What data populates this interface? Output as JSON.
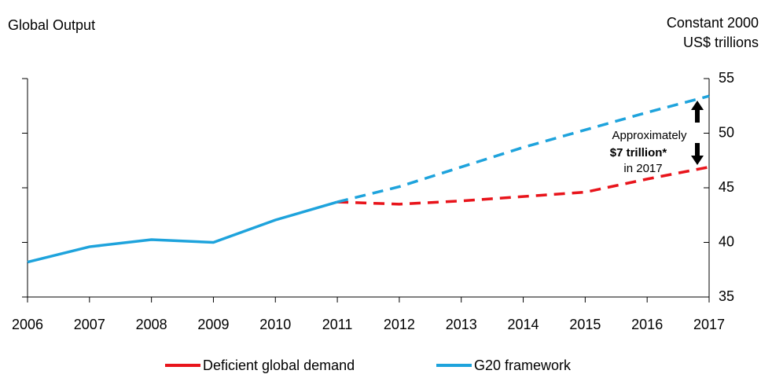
{
  "chart_data": {
    "type": "line",
    "y_label_left": "Global Output",
    "y_label_right": [
      "Constant 2000",
      "US$ trillions"
    ],
    "categories": [
      "2006",
      "2007",
      "2008",
      "2009",
      "2010",
      "2011",
      "2012",
      "2013",
      "2014",
      "2015",
      "2016",
      "2017"
    ],
    "series": [
      {
        "name": "Deficient global demand",
        "color": "#e8141b",
        "dashed_from": "2011",
        "values": [
          null,
          null,
          null,
          null,
          null,
          43.7,
          43.5,
          43.8,
          44.2,
          44.6,
          45.8,
          46.9
        ]
      },
      {
        "name": "G20 framework",
        "color": "#1ea3dc",
        "dashed_from": "2011",
        "values": [
          38.2,
          39.6,
          40.25,
          40.0,
          42.05,
          43.7,
          45.1,
          46.9,
          48.7,
          50.3,
          51.9,
          53.4
        ]
      }
    ],
    "ylim": [
      35,
      55
    ],
    "yticks": [
      35,
      40,
      45,
      50,
      55
    ],
    "annotation": [
      "Approximately",
      "$7 trillion*",
      "in 2017"
    ],
    "legend": "bottom"
  }
}
